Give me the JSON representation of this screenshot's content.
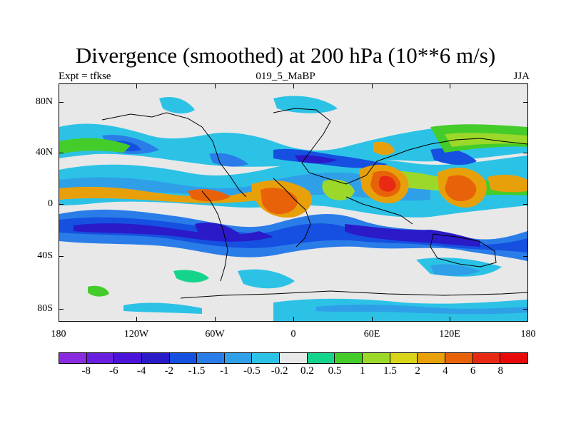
{
  "title": "Divergence (smoothed) at 200 hPa (10**6 m/s)",
  "subtitle_left": "Expt = tfkse",
  "subtitle_center": "019_5_MaBP",
  "subtitle_right": "JJA",
  "y_axis_labels": [
    "80N",
    "40N",
    "0",
    "40S",
    "80S"
  ],
  "x_axis_labels": [
    "180",
    "120W",
    "60W",
    "0",
    "60E",
    "120E",
    "180"
  ],
  "colorbar": {
    "labels": [
      "-8",
      "-6",
      "-4",
      "-2",
      "-1.5",
      "-1",
      "-0.5",
      "-0.2",
      "0.2",
      "0.5",
      "1",
      "1.5",
      "2",
      "4",
      "6",
      "8"
    ],
    "colors": [
      "#8a2be2",
      "#6a1ee0",
      "#4b14d8",
      "#2a1ac8",
      "#1550e0",
      "#2a7de8",
      "#2fa0e8",
      "#2cc2e6",
      "#e8e8e8",
      "#14d48c",
      "#44cc2a",
      "#9cd82a",
      "#d8d41a",
      "#e8a00a",
      "#e8620a",
      "#e82a14",
      "#e80a0a"
    ]
  },
  "palette": {
    "neutral": "#e8e8e8",
    "frame": "#000000"
  }
}
